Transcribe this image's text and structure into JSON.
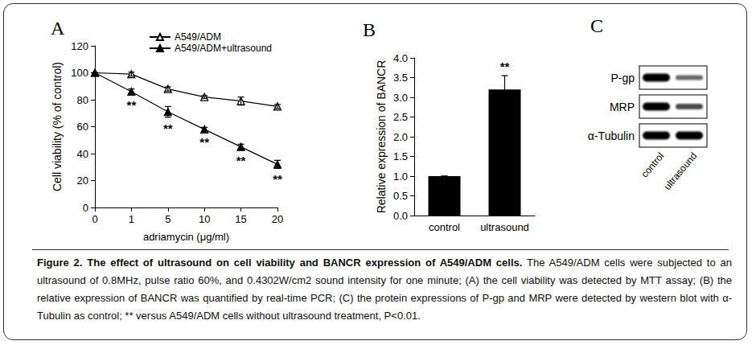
{
  "chart_data": [
    {
      "type": "line",
      "title": "A",
      "categories": [
        "0",
        "1",
        "5",
        "10",
        "15",
        "20"
      ],
      "xlabel": "adriamycin (μg/ml)",
      "ylabel": "Cell viability (% of control)",
      "ylim": [
        0,
        120
      ],
      "yticks": [
        0,
        20,
        40,
        60,
        80,
        100,
        120
      ],
      "grid": false,
      "legend": "upper right",
      "series": [
        {
          "name": "A549/ADM",
          "color": "#000000",
          "marker": "triangle-open",
          "values": [
            100,
            99,
            88,
            82,
            79,
            75
          ],
          "errors": [
            0,
            1.5,
            1.5,
            1,
            3,
            1.5
          ]
        },
        {
          "name": "A549/ADM+ultrasound",
          "color": "#000000",
          "marker": "triangle",
          "values": [
            100,
            86,
            71,
            58,
            45,
            32
          ],
          "errors": [
            0,
            2,
            4,
            1.5,
            2,
            3
          ],
          "significance": [
            null,
            "**",
            "**",
            "**",
            "**",
            "**"
          ]
        }
      ]
    },
    {
      "type": "bar",
      "title": "B",
      "categories": [
        "control",
        "ultrasound"
      ],
      "ylabel": "Relative expression of BANCR",
      "values": [
        1.0,
        3.2
      ],
      "errors": [
        0,
        0.35
      ],
      "significance": [
        null,
        "**"
      ],
      "color": "#000000",
      "grid": false,
      "ylim": [
        0,
        4
      ],
      "yticks": [
        {
          "value": 0,
          "label": "0.0"
        },
        {
          "value": 0.5,
          "label": "0.5"
        },
        {
          "value": 1,
          "label": "1.0"
        },
        {
          "value": 1.5,
          "label": "1.5"
        },
        {
          "value": 2,
          "label": "2.0"
        },
        {
          "value": 2.5,
          "label": "2.5"
        },
        {
          "value": 3,
          "label": "3.0"
        },
        {
          "value": 3.5,
          "label": "3.5"
        },
        {
          "value": 4,
          "label": "4.0"
        }
      ]
    }
  ],
  "blot": {
    "title": "C",
    "lanes": [
      "control",
      "ultrasound"
    ],
    "bands": [
      {
        "label": "P-gp",
        "intensity": [
          1,
          0.45
        ]
      },
      {
        "label": "MRP",
        "intensity": [
          1,
          0.6
        ]
      },
      {
        "label": "α-Tubulin",
        "intensity": [
          1,
          1
        ]
      }
    ]
  },
  "caption": {
    "title": "Figure 2. The effect of ultrasound on cell viability and BANCR expression of A549/ADM cells.",
    "text": "The A549/ADM cells were subjected to an ultrasound of 0.8MHz, pulse ratio 60%, and 0.4302W/cm2 sound intensity for one minute; (A) the cell viability was detected by MTT assay; (B) the relative expression of BANCR was quantified by real-time PCR; (C) the protein expressions of P-gp and MRP were detected by western blot with α-Tubulin as control; ** versus A549/ADM cells without ultrasound treatment, P<0.01."
  }
}
